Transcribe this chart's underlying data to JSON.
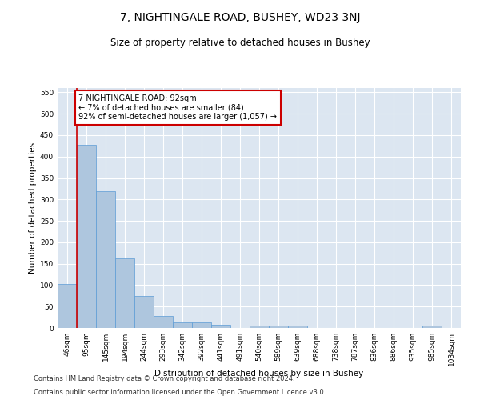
{
  "title": "7, NIGHTINGALE ROAD, BUSHEY, WD23 3NJ",
  "subtitle": "Size of property relative to detached houses in Bushey",
  "xlabel": "Distribution of detached houses by size in Bushey",
  "ylabel": "Number of detached properties",
  "categories": [
    "46sqm",
    "95sqm",
    "145sqm",
    "194sqm",
    "244sqm",
    "293sqm",
    "342sqm",
    "392sqm",
    "441sqm",
    "491sqm",
    "540sqm",
    "589sqm",
    "639sqm",
    "688sqm",
    "738sqm",
    "787sqm",
    "836sqm",
    "886sqm",
    "935sqm",
    "985sqm",
    "1034sqm"
  ],
  "values": [
    103,
    428,
    320,
    163,
    75,
    28,
    13,
    13,
    8,
    0,
    5,
    6,
    5,
    0,
    0,
    0,
    0,
    0,
    0,
    5,
    0
  ],
  "bar_color": "#aec6de",
  "bar_edge_color": "#5b9bd5",
  "vline_x": 0.5,
  "vline_color": "#cc0000",
  "annotation_text": "7 NIGHTINGALE ROAD: 92sqm\n← 7% of detached houses are smaller (84)\n92% of semi-detached houses are larger (1,057) →",
  "annotation_box_color": "#ffffff",
  "annotation_box_edge": "#cc0000",
  "ylim": [
    0,
    560
  ],
  "yticks": [
    0,
    50,
    100,
    150,
    200,
    250,
    300,
    350,
    400,
    450,
    500,
    550
  ],
  "footer1": "Contains HM Land Registry data © Crown copyright and database right 2024.",
  "footer2": "Contains public sector information licensed under the Open Government Licence v3.0.",
  "plot_bg_color": "#dce6f1",
  "grid_color": "#ffffff",
  "title_fontsize": 10,
  "subtitle_fontsize": 8.5,
  "axis_label_fontsize": 7.5,
  "tick_fontsize": 6.5,
  "footer_fontsize": 6,
  "annotation_fontsize": 7
}
